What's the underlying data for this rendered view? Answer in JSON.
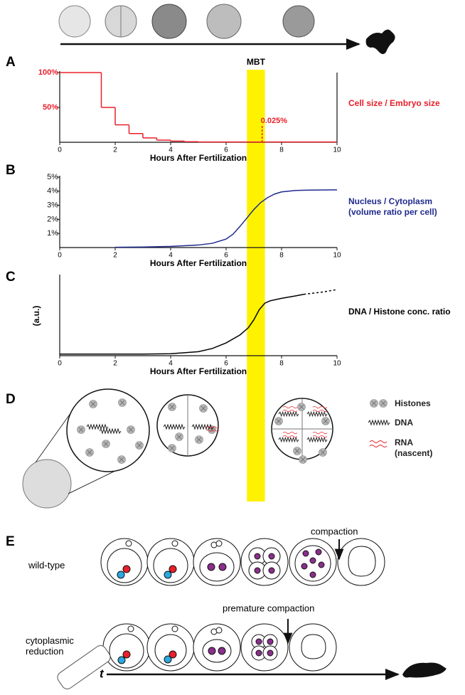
{
  "panel_labels": [
    "A",
    "B",
    "C",
    "D",
    "E"
  ],
  "mbt": {
    "label": "MBT",
    "xrange": [
      6.75,
      7.4
    ]
  },
  "chart_data": [
    {
      "type": "step",
      "xlabel": "Hours After Fertilization",
      "xlim": [
        0,
        10
      ],
      "xticks": [
        0,
        2,
        4,
        6,
        8,
        10
      ],
      "ylim": [
        0,
        100
      ],
      "yticks": [
        {
          "value": 50,
          "label": "50%"
        },
        {
          "value": 100,
          "label": "100%"
        }
      ],
      "x": [
        0,
        1.5,
        2,
        2.5,
        3,
        3.5,
        4,
        4.5,
        5
      ],
      "series": [
        {
          "name": "Cell size / Embryo size",
          "color": "#e8202a",
          "values": [
            100,
            50,
            25,
            12.5,
            6.25,
            3.1,
            1.6,
            0.8,
            0.4
          ]
        }
      ],
      "annotation": {
        "x": 7.3,
        "value": 0.025,
        "label": "0.025%"
      },
      "right_axis": true
    },
    {
      "type": "line",
      "xlabel": "Hours After Fertilization",
      "xlim": [
        0,
        10
      ],
      "xticks": [
        0,
        2,
        4,
        6,
        8,
        10
      ],
      "ylim": [
        0,
        5
      ],
      "yticks": [
        {
          "value": 1,
          "label": "1%"
        },
        {
          "value": 2,
          "label": "2%"
        },
        {
          "value": 3,
          "label": "3%"
        },
        {
          "value": 4,
          "label": "4%"
        },
        {
          "value": 5,
          "label": "5%"
        }
      ],
      "x": [
        2,
        3,
        4,
        5,
        5.5,
        6,
        6.25,
        6.5,
        6.75,
        7,
        7.25,
        7.5,
        7.75,
        8,
        8.5,
        9,
        10
      ],
      "series": [
        {
          "name": "Nucleus / Cytoplasm (volume ratio per cell)",
          "color": "#1f2a8c",
          "values": [
            0.02,
            0.04,
            0.08,
            0.18,
            0.3,
            0.6,
            0.95,
            1.5,
            2.1,
            2.7,
            3.2,
            3.55,
            3.8,
            3.95,
            4.05,
            4.08,
            4.1
          ]
        }
      ]
    },
    {
      "type": "line",
      "xlabel": "Hours After Fertilization",
      "ylabel": "(a.u.)",
      "xlim": [
        0,
        10
      ],
      "xticks": [
        0,
        2,
        4,
        6,
        8,
        10
      ],
      "ylim": [
        0,
        10
      ],
      "x": [
        0,
        1,
        2,
        3,
        4,
        5,
        5.5,
        6,
        6.5,
        6.8,
        7,
        7.2,
        7.4,
        7.6,
        8,
        8.5,
        8.8,
        9.5,
        10
      ],
      "series": [
        {
          "name": "DNA / Histone conc. ratio",
          "color": "#000000",
          "values": [
            0.2,
            0.2,
            0.2,
            0.2,
            0.25,
            0.5,
            0.9,
            1.6,
            2.6,
            3.5,
            4.5,
            5.8,
            6.6,
            6.9,
            7.2,
            7.5,
            7.7,
            null,
            null
          ]
        },
        {
          "color": "#000000",
          "dashed": true,
          "values": [
            null,
            null,
            null,
            null,
            null,
            null,
            null,
            null,
            null,
            null,
            null,
            null,
            null,
            null,
            null,
            null,
            7.7,
            8.0,
            8.3
          ]
        }
      ]
    }
  ],
  "panel_d": {
    "legend": [
      "Histones",
      "DNA",
      "RNA (nascent)"
    ]
  },
  "panel_e": {
    "rows": [
      "wild-type",
      "cytoplasmic reduction"
    ],
    "arrows": [
      "compaction",
      "premature compaction"
    ],
    "time_label": "t"
  }
}
